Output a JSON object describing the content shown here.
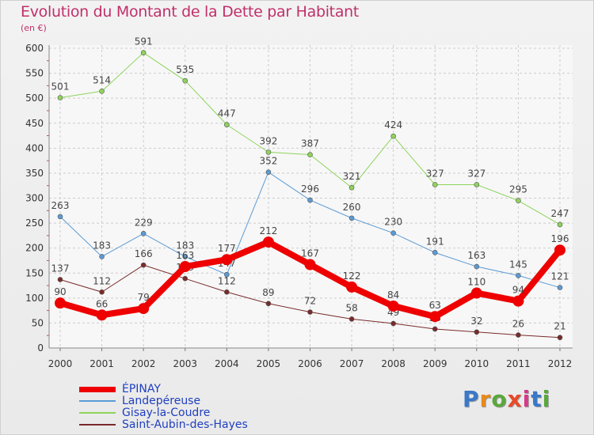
{
  "title": "Evolution du Montant de la Dette par Habitant",
  "subtitle": "(en €)",
  "logo": {
    "text": "Proxiti",
    "letter_colors": [
      "#3a78c8",
      "#e88a1a",
      "#5aa83c",
      "#e84a2a",
      "#d63a8a",
      "#3a78c8",
      "#5aa83c"
    ]
  },
  "chart_data": {
    "type": "line",
    "x": [
      "2000",
      "2001",
      "2002",
      "2003",
      "2004",
      "2005",
      "2006",
      "2007",
      "2008",
      "2009",
      "2010",
      "2011",
      "2012"
    ],
    "ylim": [
      0,
      600
    ],
    "yticks": [
      0,
      50,
      100,
      150,
      200,
      250,
      300,
      350,
      400,
      450,
      500,
      550,
      600
    ],
    "grid": true,
    "legend_position": "bottom-left",
    "series": [
      {
        "name": "ÉPINAY",
        "color": "#ee0000",
        "width": 8,
        "values": [
          90,
          66,
          79,
          163,
          177,
          212,
          167,
          122,
          84,
          63,
          110,
          94,
          196
        ]
      },
      {
        "name": "Landepéreuse",
        "color": "#5b9bd5",
        "width": 1,
        "values": [
          263,
          183,
          229,
          183,
          147,
          352,
          296,
          260,
          230,
          191,
          163,
          145,
          121
        ]
      },
      {
        "name": "Gisay-la-Coudre",
        "color": "#8ed45a",
        "width": 1,
        "values": [
          501,
          514,
          591,
          535,
          447,
          392,
          387,
          321,
          424,
          327,
          327,
          295,
          247
        ]
      },
      {
        "name": "Saint-Aubin-des-Hayes",
        "color": "#7a2a2a",
        "width": 1,
        "values": [
          137,
          112,
          166,
          139,
          112,
          89,
          72,
          58,
          49,
          38,
          32,
          26,
          21
        ]
      }
    ]
  }
}
